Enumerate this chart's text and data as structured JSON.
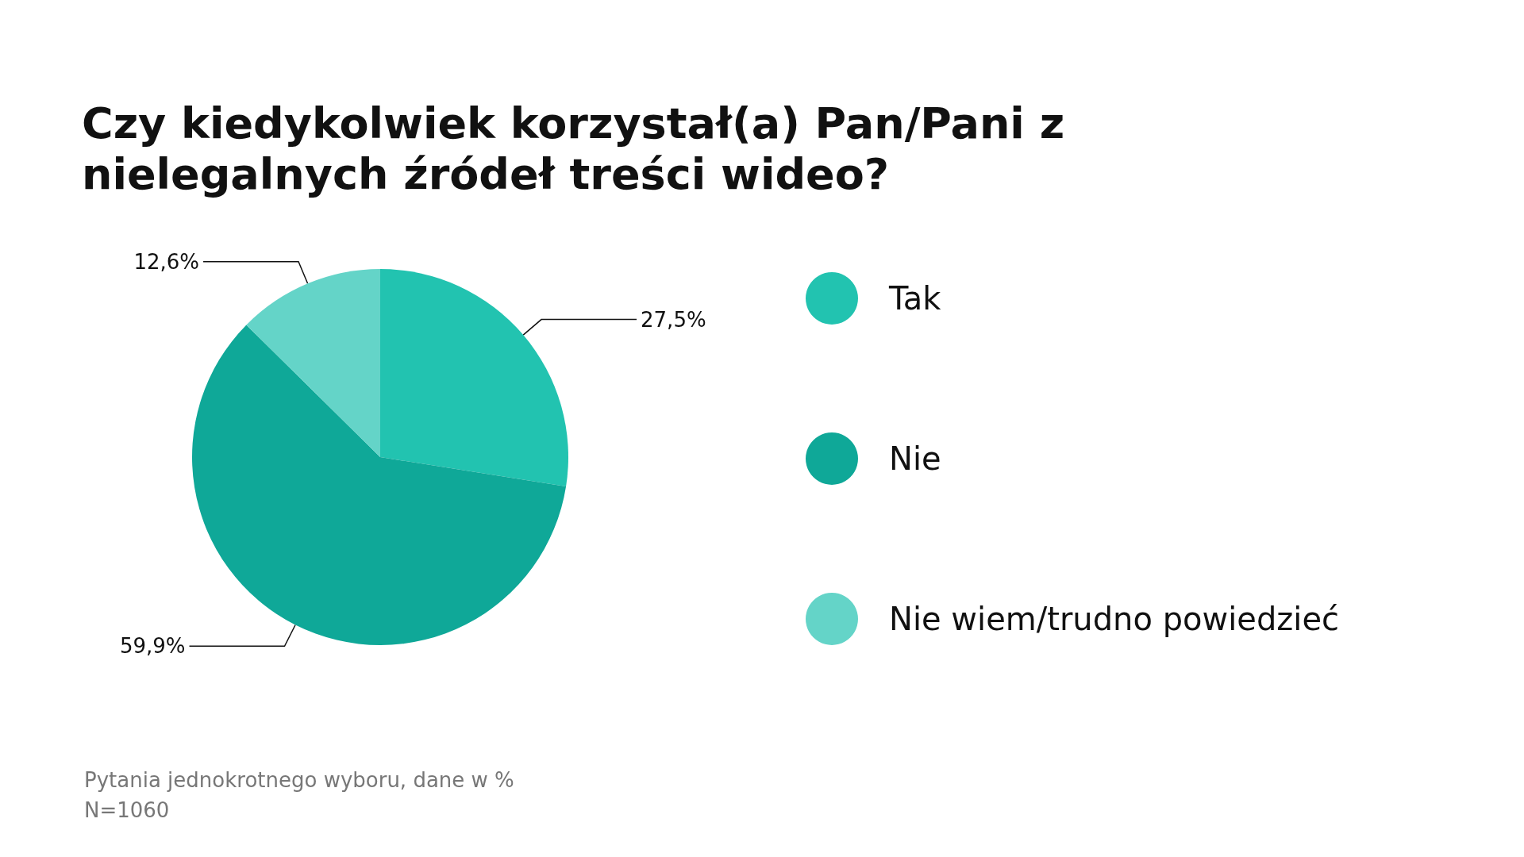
{
  "chart_data": {
    "type": "pie",
    "title": "Czy kiedykolwiek korzystał(a) Pan/Pani z nielegalnych źródeł treści wideo?",
    "categories": [
      "Tak",
      "Nie",
      "Nie wiem/trudno powiedzieć"
    ],
    "values": [
      27.5,
      59.9,
      12.6
    ],
    "colors": [
      "#22c3b0",
      "#0fa898",
      "#64d4c8"
    ],
    "value_labels": [
      "27,5%",
      "59,9%",
      "12,6%"
    ],
    "legend": "right",
    "annotations": [
      "Pytania jednokrotnego wyboru, dane w %",
      "N=1060"
    ]
  }
}
